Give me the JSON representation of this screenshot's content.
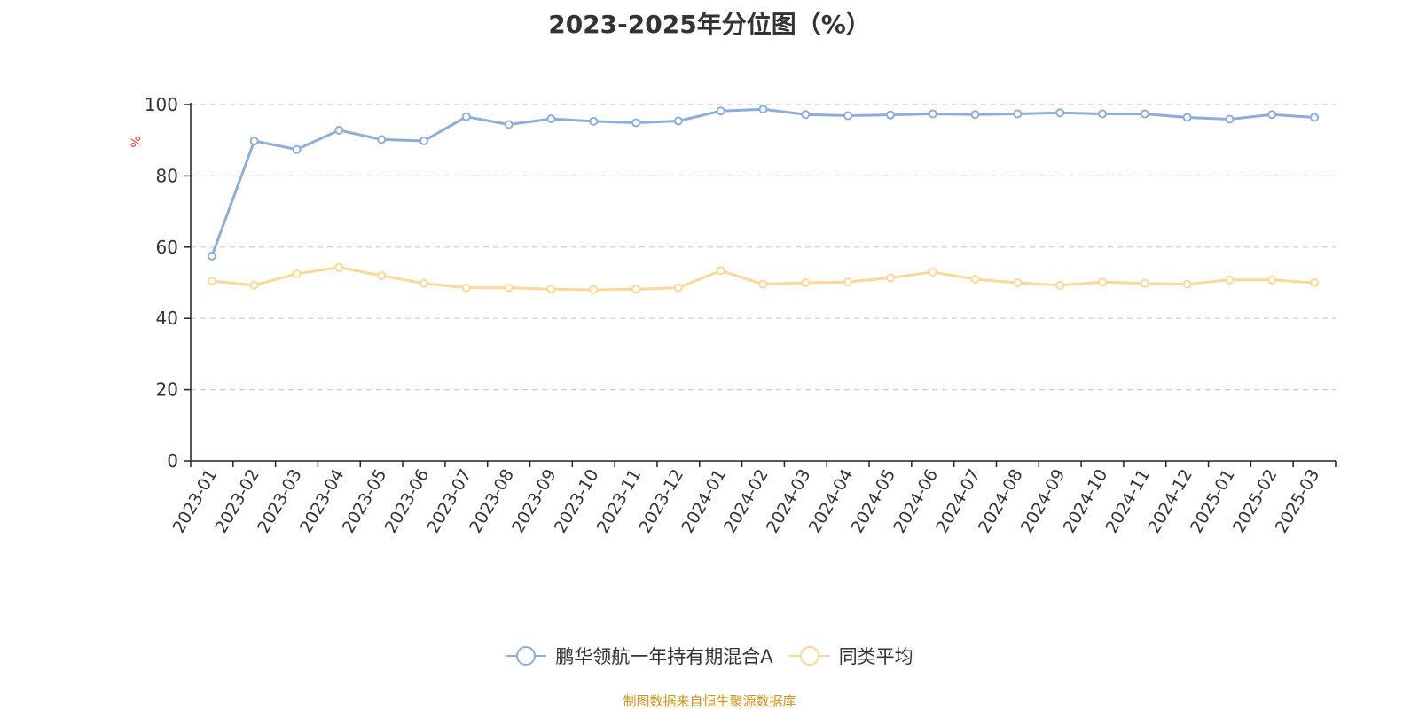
{
  "title": "2023-2025年分位图（%）",
  "source": "制图数据来自恒生聚源数据库",
  "chart_data": {
    "type": "line",
    "title": "2023-2025年分位图（%）",
    "ylabel": "%",
    "ylim": [
      0,
      100
    ],
    "yticks": [
      0,
      20,
      40,
      60,
      80,
      100
    ],
    "grid": true,
    "legend_position": "bottom",
    "categories": [
      "2023-01",
      "2023-02",
      "2023-03",
      "2023-04",
      "2023-05",
      "2023-06",
      "2023-07",
      "2023-08",
      "2023-09",
      "2023-10",
      "2023-11",
      "2023-12",
      "2024-01",
      "2024-02",
      "2024-03",
      "2024-04",
      "2024-05",
      "2024-06",
      "2024-07",
      "2024-08",
      "2024-09",
      "2024-10",
      "2024-11",
      "2024-12",
      "2025-01",
      "2025-02",
      "2025-03"
    ],
    "series": [
      {
        "name": "鹏华领航一年持有期混合A",
        "color": "#8eaed8",
        "values": [
          57.5,
          89.8,
          87.4,
          92.8,
          90.2,
          89.8,
          96.6,
          94.4,
          96.0,
          95.3,
          94.9,
          95.4,
          98.2,
          98.7,
          97.2,
          96.9,
          97.1,
          97.4,
          97.2,
          97.4,
          97.7,
          97.4,
          97.4,
          96.4,
          95.9,
          97.2,
          96.4
        ]
      },
      {
        "name": "同类平均",
        "color": "#fcd99a",
        "values": [
          50.5,
          49.3,
          52.5,
          54.3,
          52.0,
          49.8,
          48.6,
          48.6,
          48.2,
          48.0,
          48.2,
          48.6,
          53.4,
          49.6,
          50.0,
          50.2,
          51.4,
          53.0,
          51.0,
          50.0,
          49.3,
          50.2,
          49.8,
          49.6,
          50.8,
          50.8,
          50.0
        ]
      }
    ]
  }
}
